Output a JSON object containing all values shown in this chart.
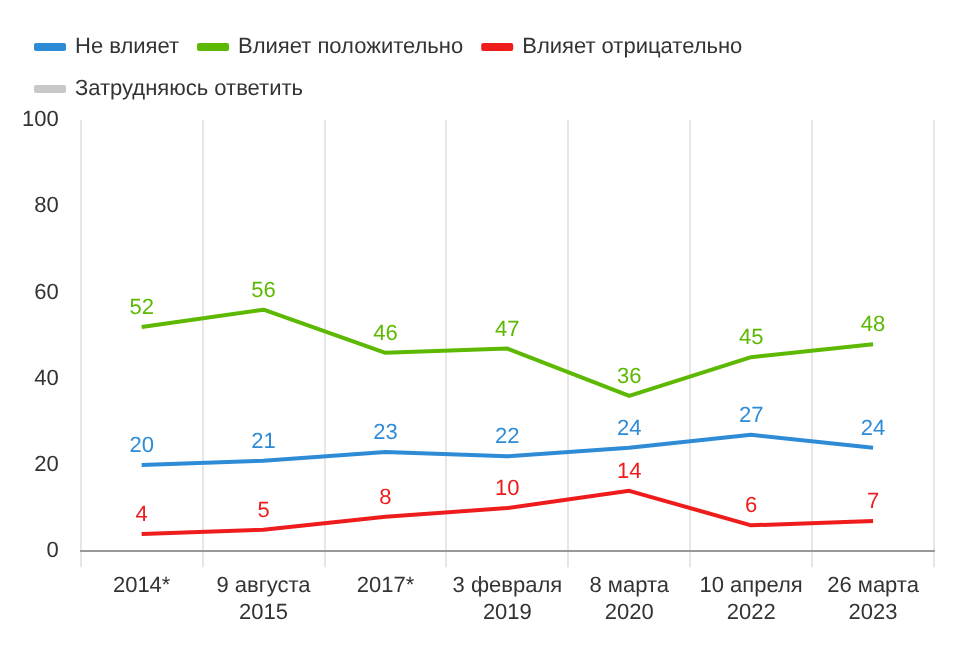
{
  "chart_data": {
    "type": "line",
    "categories": [
      "2014*",
      "9 августа 2015",
      "2017*",
      "3 февраля 2019",
      "8 марта 2020",
      "10 апреля 2022",
      "26 марта 2023"
    ],
    "series": [
      {
        "name": "Не влияет",
        "color": "#2e8bd6",
        "values": [
          20,
          21,
          23,
          22,
          24,
          27,
          24
        ]
      },
      {
        "name": "Влияет положительно",
        "color": "#5cb800",
        "values": [
          52,
          56,
          46,
          47,
          36,
          45,
          48
        ]
      },
      {
        "name": "Влияет отрицательно",
        "color": "#ee1c1c",
        "values": [
          4,
          5,
          8,
          10,
          14,
          6,
          7
        ]
      },
      {
        "name": "Затрудняюсь ответить",
        "color": "#c8c8c8",
        "values": [
          null,
          null,
          null,
          null,
          null,
          null,
          null
        ]
      }
    ],
    "ylim": [
      0,
      100
    ],
    "yticks": [
      0,
      20,
      40,
      60,
      80,
      100
    ],
    "grid": "x",
    "legend": "top left",
    "marker": "none",
    "line_style": "solid",
    "data_labels": true
  }
}
